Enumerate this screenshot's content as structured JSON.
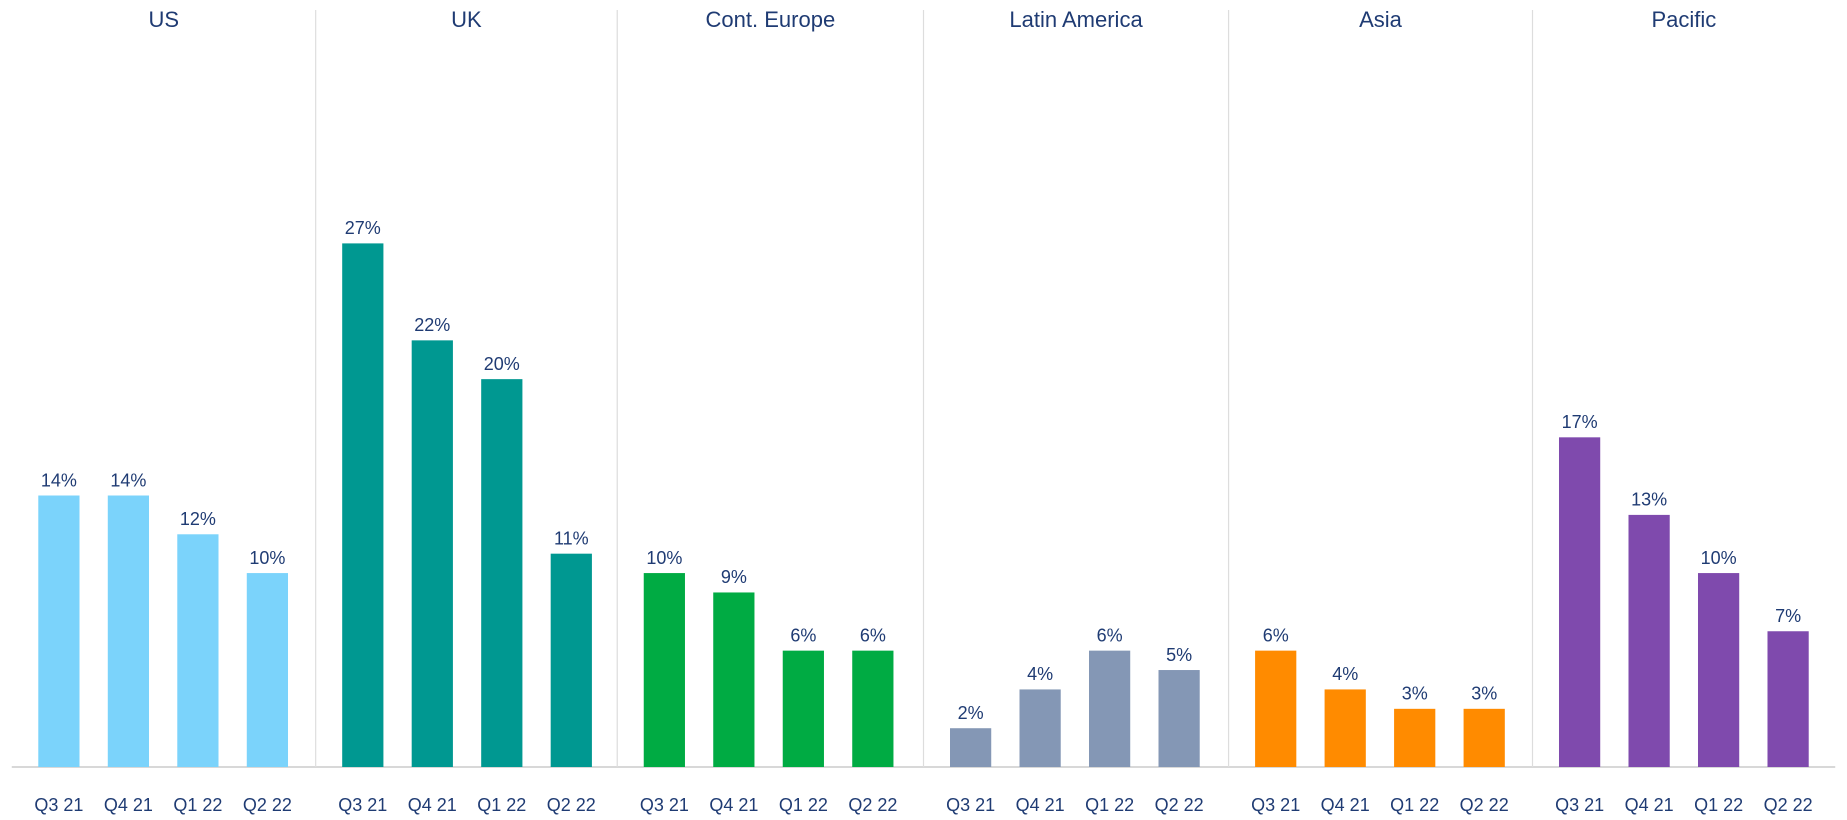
{
  "chart_data": [
    {
      "type": "bar",
      "title": "US",
      "categories": [
        "Q3 21",
        "Q4 21",
        "Q1 22",
        "Q2 22"
      ],
      "values": [
        14,
        14,
        12,
        10
      ],
      "value_labels": [
        "14%",
        "14%",
        "12%",
        "10%"
      ],
      "color": "#7bd3fb",
      "ylim": [
        0,
        28
      ]
    },
    {
      "type": "bar",
      "title": "UK",
      "categories": [
        "Q3 21",
        "Q4 21",
        "Q1 22",
        "Q2 22"
      ],
      "values": [
        27,
        22,
        20,
        11
      ],
      "value_labels": [
        "27%",
        "22%",
        "20%",
        "11%"
      ],
      "color": "#009891",
      "ylim": [
        0,
        28
      ]
    },
    {
      "type": "bar",
      "title": "Cont. Europe",
      "categories": [
        "Q3 21",
        "Q4 21",
        "Q1 22",
        "Q2 22"
      ],
      "values": [
        10,
        9,
        6,
        6
      ],
      "value_labels": [
        "10%",
        "9%",
        "6%",
        "6%"
      ],
      "color": "#00ab43",
      "ylim": [
        0,
        28
      ]
    },
    {
      "type": "bar",
      "title": "Latin America",
      "categories": [
        "Q3 21",
        "Q4 21",
        "Q1 22",
        "Q2 22"
      ],
      "values": [
        2,
        4,
        6,
        5
      ],
      "value_labels": [
        "2%",
        "4%",
        "6%",
        "5%"
      ],
      "color": "#8497b5",
      "ylim": [
        0,
        28
      ]
    },
    {
      "type": "bar",
      "title": "Asia",
      "categories": [
        "Q3 21",
        "Q4 21",
        "Q1 22",
        "Q2 22"
      ],
      "values": [
        6,
        4,
        3,
        3
      ],
      "value_labels": [
        "6%",
        "4%",
        "3%",
        "3%"
      ],
      "color": "#ff8b00",
      "ylim": [
        0,
        28
      ]
    },
    {
      "type": "bar",
      "title": "Pacific",
      "categories": [
        "Q3 21",
        "Q4 21",
        "Q1 22",
        "Q2 22"
      ],
      "values": [
        17,
        13,
        10,
        7
      ],
      "value_labels": [
        "17%",
        "13%",
        "10%",
        "7%"
      ],
      "color": "#7f4aad",
      "ylim": [
        0,
        28
      ]
    }
  ]
}
